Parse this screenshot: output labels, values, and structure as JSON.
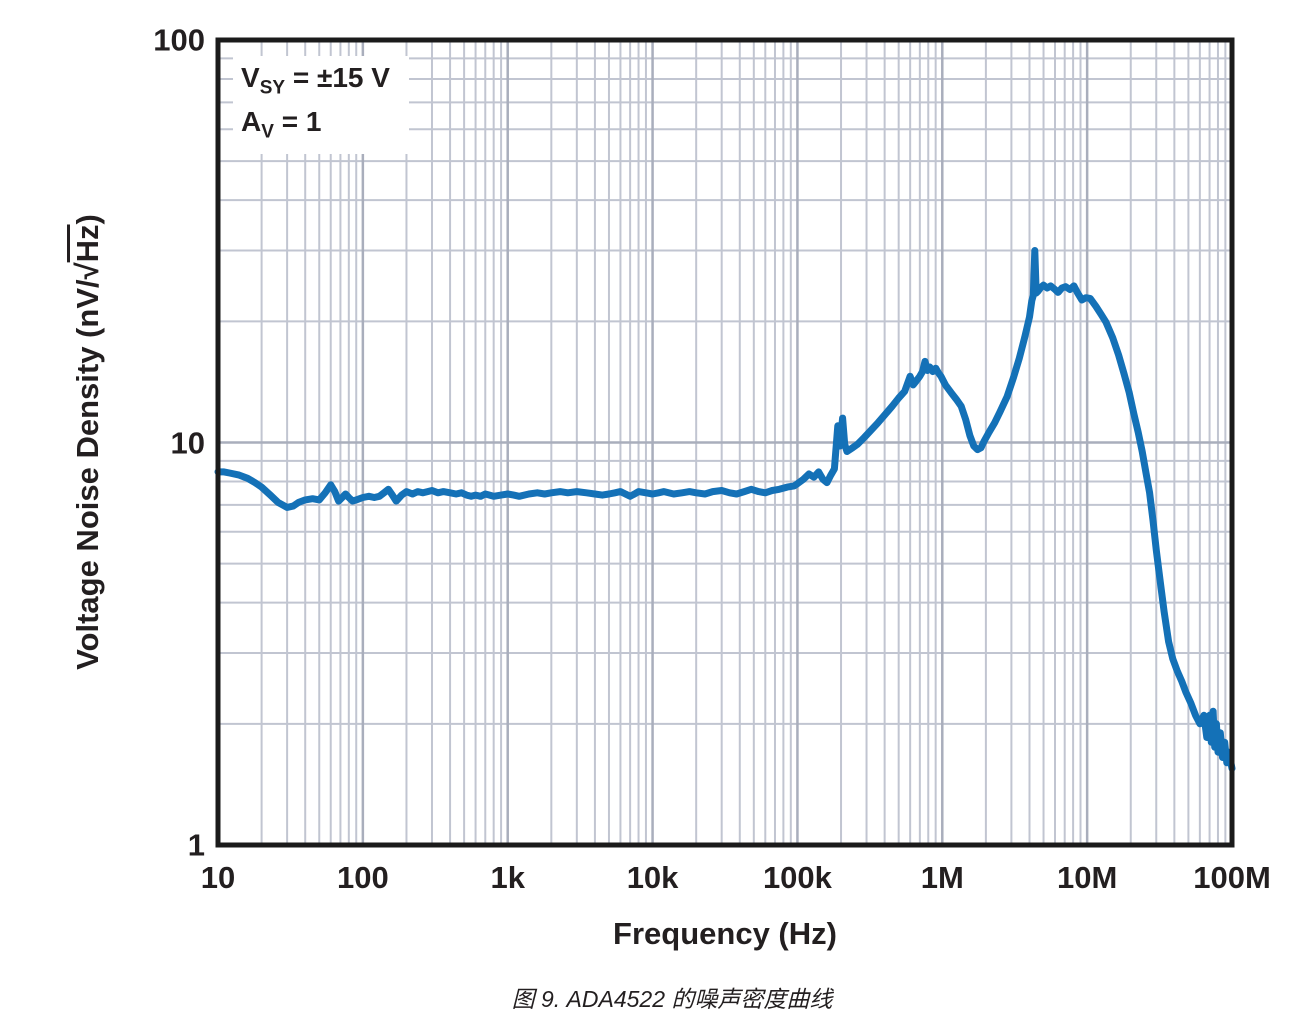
{
  "figure": {
    "caption": "图 9. ADA4522 的噪声密度曲线"
  },
  "annotation": {
    "line1": {
      "base": "V",
      "sub": "SY",
      "rest": " = ±15 V"
    },
    "line2": {
      "base": "A",
      "sub": "V",
      "rest": " = 1"
    }
  },
  "ylabel_parts": {
    "prefix": "Voltage Noise Density (nV/",
    "sqrt": "√",
    "radicand": "Hz",
    "suffix": ")"
  },
  "colors": {
    "curve": "#1471b7",
    "grid_minor": "#c1c5d1",
    "grid_major": "#a9aebc",
    "frame": "#1b1b1b",
    "text": "#231f20",
    "background": "#ffffff"
  },
  "chart_data": {
    "type": "line",
    "title": "",
    "xlabel": "Frequency (Hz)",
    "ylabel": "Voltage Noise Density (nV/√Hz)",
    "x_scale": "log",
    "y_scale": "log",
    "xlim": [
      10,
      100000000
    ],
    "ylim": [
      1,
      100
    ],
    "x_tick_values": [
      10,
      100,
      1000,
      10000,
      100000,
      1000000,
      10000000,
      100000000
    ],
    "x_tick_labels": [
      "10",
      "100",
      "1k",
      "10k",
      "100k",
      "1M",
      "10M",
      "100M"
    ],
    "y_tick_values": [
      1,
      10,
      100
    ],
    "y_tick_labels": [
      "1",
      "10",
      "100"
    ],
    "grid": "log minor grid on both axes",
    "legend": null,
    "conditions": [
      "VSY = ±15 V",
      "AV = 1"
    ],
    "series": [
      {
        "name": "ADA4522 voltage noise density",
        "points": [
          [
            10,
            8.45
          ],
          [
            11,
            8.45
          ],
          [
            12,
            8.4
          ],
          [
            14,
            8.3
          ],
          [
            16,
            8.15
          ],
          [
            18,
            7.95
          ],
          [
            20,
            7.75
          ],
          [
            23,
            7.4
          ],
          [
            26,
            7.1
          ],
          [
            30,
            6.9
          ],
          [
            33,
            6.95
          ],
          [
            36,
            7.1
          ],
          [
            40,
            7.2
          ],
          [
            45,
            7.25
          ],
          [
            50,
            7.2
          ],
          [
            55,
            7.5
          ],
          [
            60,
            7.85
          ],
          [
            64,
            7.55
          ],
          [
            68,
            7.15
          ],
          [
            72,
            7.3
          ],
          [
            76,
            7.45
          ],
          [
            80,
            7.3
          ],
          [
            85,
            7.15
          ],
          [
            90,
            7.2
          ],
          [
            100,
            7.3
          ],
          [
            110,
            7.35
          ],
          [
            120,
            7.3
          ],
          [
            130,
            7.35
          ],
          [
            140,
            7.5
          ],
          [
            150,
            7.65
          ],
          [
            160,
            7.4
          ],
          [
            170,
            7.15
          ],
          [
            185,
            7.4
          ],
          [
            200,
            7.55
          ],
          [
            220,
            7.45
          ],
          [
            240,
            7.55
          ],
          [
            260,
            7.5
          ],
          [
            280,
            7.55
          ],
          [
            300,
            7.6
          ],
          [
            330,
            7.5
          ],
          [
            360,
            7.55
          ],
          [
            400,
            7.5
          ],
          [
            440,
            7.45
          ],
          [
            480,
            7.5
          ],
          [
            520,
            7.4
          ],
          [
            560,
            7.35
          ],
          [
            600,
            7.4
          ],
          [
            650,
            7.35
          ],
          [
            700,
            7.45
          ],
          [
            750,
            7.4
          ],
          [
            800,
            7.35
          ],
          [
            900,
            7.4
          ],
          [
            1000,
            7.45
          ],
          [
            1100,
            7.4
          ],
          [
            1200,
            7.35
          ],
          [
            1400,
            7.45
          ],
          [
            1600,
            7.5
          ],
          [
            1800,
            7.45
          ],
          [
            2000,
            7.5
          ],
          [
            2300,
            7.55
          ],
          [
            2600,
            7.5
          ],
          [
            3000,
            7.55
          ],
          [
            3500,
            7.5
          ],
          [
            4000,
            7.45
          ],
          [
            4500,
            7.4
          ],
          [
            5000,
            7.45
          ],
          [
            5500,
            7.5
          ],
          [
            6000,
            7.55
          ],
          [
            6500,
            7.45
          ],
          [
            7000,
            7.35
          ],
          [
            7500,
            7.45
          ],
          [
            8000,
            7.55
          ],
          [
            9000,
            7.5
          ],
          [
            10000,
            7.45
          ],
          [
            11000,
            7.5
          ],
          [
            12000,
            7.55
          ],
          [
            14000,
            7.45
          ],
          [
            16000,
            7.5
          ],
          [
            18000,
            7.55
          ],
          [
            20000,
            7.5
          ],
          [
            23000,
            7.45
          ],
          [
            26000,
            7.55
          ],
          [
            30000,
            7.6
          ],
          [
            34000,
            7.5
          ],
          [
            38000,
            7.45
          ],
          [
            43000,
            7.55
          ],
          [
            48000,
            7.65
          ],
          [
            54000,
            7.55
          ],
          [
            60000,
            7.5
          ],
          [
            67000,
            7.6
          ],
          [
            75000,
            7.65
          ],
          [
            85000,
            7.75
          ],
          [
            95000,
            7.8
          ],
          [
            100000,
            7.9
          ],
          [
            110000,
            8.1
          ],
          [
            120000,
            8.35
          ],
          [
            130000,
            8.2
          ],
          [
            140000,
            8.45
          ],
          [
            150000,
            8.1
          ],
          [
            160000,
            7.95
          ],
          [
            170000,
            8.3
          ],
          [
            180000,
            8.6
          ],
          [
            190000,
            11.0
          ],
          [
            196000,
            9.8
          ],
          [
            205000,
            11.5
          ],
          [
            212000,
            9.9
          ],
          [
            220000,
            9.5
          ],
          [
            240000,
            9.7
          ],
          [
            260000,
            9.9
          ],
          [
            290000,
            10.3
          ],
          [
            320000,
            10.7
          ],
          [
            360000,
            11.2
          ],
          [
            400000,
            11.7
          ],
          [
            450000,
            12.3
          ],
          [
            500000,
            12.9
          ],
          [
            550000,
            13.4
          ],
          [
            600000,
            14.6
          ],
          [
            630000,
            13.9
          ],
          [
            660000,
            14.2
          ],
          [
            700000,
            14.6
          ],
          [
            730000,
            15.0
          ],
          [
            760000,
            15.9
          ],
          [
            790000,
            15.1
          ],
          [
            820000,
            15.4
          ],
          [
            860000,
            15.0
          ],
          [
            900000,
            15.3
          ],
          [
            940000,
            14.9
          ],
          [
            980000,
            14.6
          ],
          [
            1050000,
            13.9
          ],
          [
            1150000,
            13.3
          ],
          [
            1250000,
            12.8
          ],
          [
            1350000,
            12.3
          ],
          [
            1450000,
            11.4
          ],
          [
            1550000,
            10.4
          ],
          [
            1650000,
            9.8
          ],
          [
            1750000,
            9.6
          ],
          [
            1850000,
            9.7
          ],
          [
            1950000,
            10.1
          ],
          [
            2100000,
            10.6
          ],
          [
            2300000,
            11.2
          ],
          [
            2500000,
            11.9
          ],
          [
            2800000,
            13.0
          ],
          [
            3100000,
            14.5
          ],
          [
            3400000,
            16.2
          ],
          [
            3700000,
            18.2
          ],
          [
            4000000,
            20.5
          ],
          [
            4150000,
            22.5
          ],
          [
            4250000,
            23.2
          ],
          [
            4350000,
            30.0
          ],
          [
            4450000,
            23.5
          ],
          [
            4600000,
            23.8
          ],
          [
            4800000,
            24.3
          ],
          [
            5000000,
            24.6
          ],
          [
            5300000,
            24.2
          ],
          [
            5600000,
            24.5
          ],
          [
            6000000,
            24.0
          ],
          [
            6300000,
            23.6
          ],
          [
            6700000,
            24.2
          ],
          [
            7100000,
            24.4
          ],
          [
            7600000,
            24.0
          ],
          [
            8100000,
            24.5
          ],
          [
            8600000,
            23.5
          ],
          [
            9200000,
            22.6
          ],
          [
            9800000,
            22.9
          ],
          [
            10500000,
            22.8
          ],
          [
            11500000,
            21.8
          ],
          [
            12500000,
            20.8
          ],
          [
            13500000,
            19.9
          ],
          [
            15000000,
            18.2
          ],
          [
            16500000,
            16.5
          ],
          [
            18000000,
            14.8
          ],
          [
            19500000,
            13.3
          ],
          [
            21000000,
            11.8
          ],
          [
            22500000,
            10.6
          ],
          [
            24000000,
            9.5
          ],
          [
            25500000,
            8.4
          ],
          [
            27000000,
            7.5
          ],
          [
            28500000,
            6.4
          ],
          [
            30000000,
            5.4
          ],
          [
            32000000,
            4.5
          ],
          [
            34000000,
            3.8
          ],
          [
            36500000,
            3.2
          ],
          [
            39000000,
            2.9
          ],
          [
            42000000,
            2.7
          ],
          [
            45000000,
            2.55
          ],
          [
            48000000,
            2.4
          ],
          [
            52000000,
            2.25
          ],
          [
            56000000,
            2.1
          ],
          [
            60000000,
            2.0
          ],
          [
            64000000,
            2.1
          ],
          [
            67000000,
            1.85
          ],
          [
            70000000,
            2.1
          ],
          [
            72000000,
            1.8
          ],
          [
            74000000,
            2.15
          ],
          [
            76000000,
            1.75
          ],
          [
            78000000,
            2.0
          ],
          [
            80000000,
            1.7
          ],
          [
            83000000,
            1.9
          ],
          [
            86000000,
            1.65
          ],
          [
            89000000,
            1.8
          ],
          [
            92000000,
            1.6
          ],
          [
            95000000,
            1.7
          ],
          [
            100000000,
            1.55
          ]
        ]
      }
    ]
  }
}
